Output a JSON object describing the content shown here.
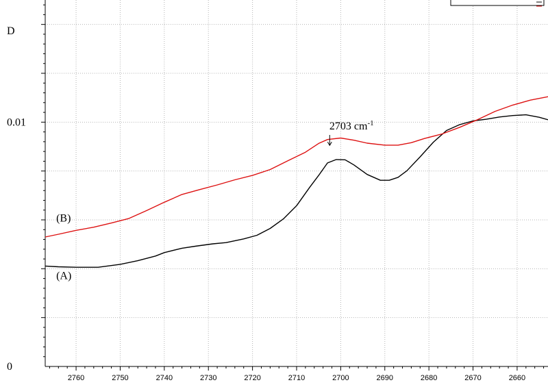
{
  "chart_data": {
    "type": "line",
    "x_reversed": true,
    "xlim": [
      2767,
      2653
    ],
    "ylim": [
      0,
      0.015
    ],
    "x_ticks": [
      2760,
      2750,
      2740,
      2730,
      2720,
      2710,
      2700,
      2690,
      2680,
      2670,
      2660
    ],
    "y_tick_labels": [
      {
        "value": 0,
        "label": "0"
      },
      {
        "value": 0.01,
        "label": "0.01"
      }
    ],
    "ylabel": "D",
    "grid": true,
    "legend": "top-right",
    "annotation": {
      "text": "2703 cm",
      "superscript": "-1",
      "x": 2702.5,
      "y": 0.0097,
      "arrow_to_y": 0.00905
    },
    "series": [
      {
        "label": "(A)",
        "label_x": 2764.5,
        "label_y": 0.00358,
        "color": "#000000",
        "points": [
          [
            2767,
            0.00411
          ],
          [
            2764,
            0.00408
          ],
          [
            2760,
            0.00406
          ],
          [
            2755,
            0.00406
          ],
          [
            2750,
            0.00418
          ],
          [
            2746,
            0.00433
          ],
          [
            2742,
            0.00452
          ],
          [
            2740,
            0.00466
          ],
          [
            2736,
            0.00484
          ],
          [
            2733,
            0.00492
          ],
          [
            2729,
            0.00502
          ],
          [
            2726,
            0.00507
          ],
          [
            2722,
            0.00522
          ],
          [
            2719,
            0.00537
          ],
          [
            2716,
            0.00565
          ],
          [
            2713,
            0.00604
          ],
          [
            2710,
            0.00658
          ],
          [
            2707,
            0.00734
          ],
          [
            2705,
            0.00782
          ],
          [
            2703,
            0.00833
          ],
          [
            2701,
            0.00847
          ],
          [
            2699,
            0.00846
          ],
          [
            2697,
            0.00825
          ],
          [
            2694,
            0.00786
          ],
          [
            2691,
            0.00762
          ],
          [
            2689,
            0.00762
          ],
          [
            2687,
            0.00774
          ],
          [
            2685,
            0.00801
          ],
          [
            2682,
            0.00858
          ],
          [
            2679,
            0.00918
          ],
          [
            2676,
            0.00966
          ],
          [
            2673,
            0.0099
          ],
          [
            2670,
            0.01005
          ],
          [
            2667,
            0.01012
          ],
          [
            2664,
            0.01021
          ],
          [
            2661,
            0.01027
          ],
          [
            2658,
            0.0103
          ],
          [
            2655,
            0.0102
          ],
          [
            2653,
            0.0101
          ]
        ]
      },
      {
        "label": "(B)",
        "label_x": 2764.5,
        "label_y": 0.00593,
        "color": "#dd1111",
        "points": [
          [
            2767,
            0.0053
          ],
          [
            2764,
            0.00541
          ],
          [
            2760,
            0.00557
          ],
          [
            2756,
            0.0057
          ],
          [
            2752,
            0.00587
          ],
          [
            2748,
            0.00606
          ],
          [
            2744,
            0.00638
          ],
          [
            2740,
            0.00672
          ],
          [
            2736,
            0.00704
          ],
          [
            2732,
            0.00724
          ],
          [
            2728,
            0.00743
          ],
          [
            2724,
            0.00764
          ],
          [
            2720,
            0.00782
          ],
          [
            2716,
            0.00806
          ],
          [
            2712,
            0.00842
          ],
          [
            2708,
            0.00877
          ],
          [
            2705,
            0.00913
          ],
          [
            2703,
            0.00929
          ],
          [
            2700,
            0.00935
          ],
          [
            2697,
            0.00926
          ],
          [
            2694,
            0.00914
          ],
          [
            2690,
            0.00906
          ],
          [
            2687,
            0.00906
          ],
          [
            2684,
            0.00916
          ],
          [
            2681,
            0.00933
          ],
          [
            2677,
            0.00952
          ],
          [
            2673,
            0.00979
          ],
          [
            2669,
            0.0101
          ],
          [
            2665,
            0.01044
          ],
          [
            2661,
            0.0107
          ],
          [
            2657,
            0.0109
          ],
          [
            2653,
            0.01104
          ]
        ]
      }
    ]
  }
}
